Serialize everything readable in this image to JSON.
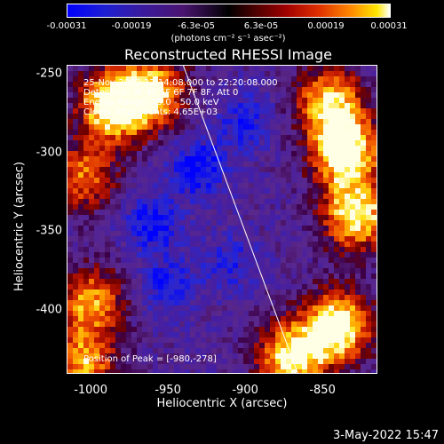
{
  "colorbar": {
    "ticks": [
      "-0.00031",
      "-0.00019",
      "-6.3e-05",
      "6.3e-05",
      "0.00019",
      "0.00031"
    ],
    "units_label": "(photons cm⁻² s⁻¹ asec⁻²)"
  },
  "chart_data": {
    "type": "heatmap",
    "title": "Reconstructed RHESSI Image",
    "xlabel": "Heliocentric X (arcsec)",
    "ylabel": "Heliocentric Y (arcsec)",
    "xlim": [
      -1015,
      -815
    ],
    "ylim": [
      -440,
      -245
    ],
    "x_ticks": [
      "-1000",
      "-950",
      "-900",
      "-850"
    ],
    "x_tick_values": [
      -1000,
      -950,
      -900,
      -850
    ],
    "y_ticks": [
      "-250",
      "-300",
      "-350",
      "-400"
    ],
    "y_tick_values": [
      -250,
      -300,
      -350,
      -400
    ],
    "color_range": [
      -0.00031,
      0.00031
    ],
    "limb_line": [
      [
        -940,
        -245
      ],
      [
        -866,
        -440
      ]
    ],
    "bright_regions": [
      {
        "x": -985,
        "y": -270,
        "level": 1.0
      },
      {
        "x": -960,
        "y": -262,
        "level": 0.8
      },
      {
        "x": -835,
        "y": -300,
        "level": 1.0
      },
      {
        "x": -845,
        "y": -268,
        "level": 0.8
      },
      {
        "x": -828,
        "y": -340,
        "level": 0.9
      },
      {
        "x": -840,
        "y": -410,
        "level": 1.0
      },
      {
        "x": -870,
        "y": -430,
        "level": 0.9
      },
      {
        "x": -1005,
        "y": -315,
        "level": 0.6
      },
      {
        "x": -1000,
        "y": -395,
        "level": 0.7
      },
      {
        "x": -1005,
        "y": -435,
        "level": 0.7
      }
    ],
    "dark_regions": [
      {
        "x": -930,
        "y": -310,
        "level": 1.0
      },
      {
        "x": -960,
        "y": -345,
        "level": 0.9
      },
      {
        "x": -950,
        "y": -385,
        "level": 0.8
      },
      {
        "x": -900,
        "y": -280,
        "level": 0.7
      },
      {
        "x": -910,
        "y": -370,
        "level": 0.6
      }
    ],
    "annotations": {
      "line1": "25-Nov-2002 22:14:08.000 to 22:20:08.000",
      "line2": "Detectors: 3F 4F 5F 6F 7F 8F, Att 0",
      "line3": "Energy Range: 25.0 - 50.0 keV",
      "line4": "Clean: Total counts: 4.65E+03",
      "peak": "Position of Peak = [-980,-278]"
    }
  },
  "timestamp": "3-May-2022 15:47"
}
